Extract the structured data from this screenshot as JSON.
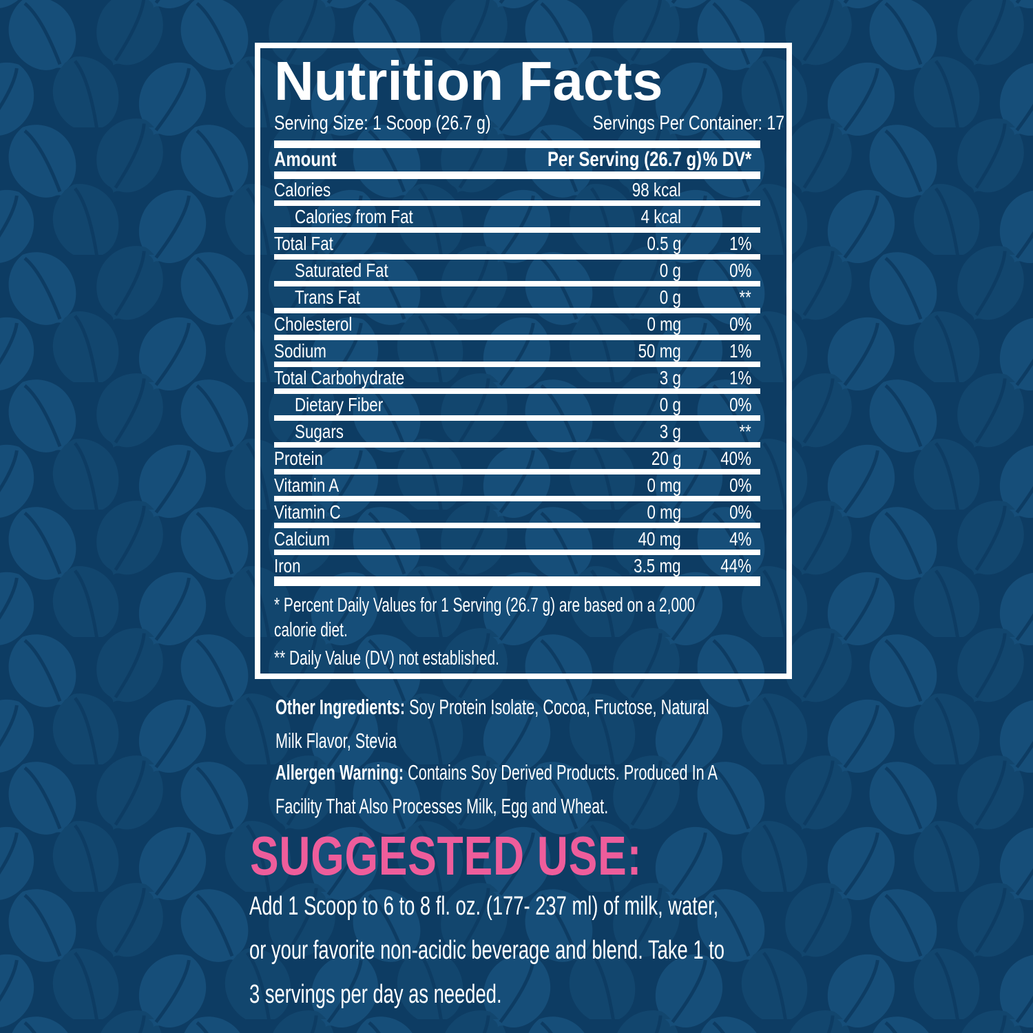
{
  "colors": {
    "background_navy": "#0d3c63",
    "leaf_blue_light": "#164e79",
    "leaf_blue_dark": "#12466e",
    "text_white": "#ffffff",
    "accent_pink": "#ee5d9b"
  },
  "panel": {
    "title": "Nutrition Facts",
    "serving_size": "Serving Size: 1 Scoop (26.7 g)",
    "servings_per_container": "Servings Per Container: 17",
    "header": {
      "amount": "Amount",
      "per_serving": "Per Serving (26.7 g)",
      "dv": "% DV*"
    },
    "rows": [
      {
        "name": "Calories",
        "amount": "98 kcal",
        "dv": "",
        "indent": false
      },
      {
        "name": "Calories from Fat",
        "amount": "4 kcal",
        "dv": "",
        "indent": true
      },
      {
        "name": "Total Fat",
        "amount": "0.5 g",
        "dv": "1%",
        "indent": false
      },
      {
        "name": "Saturated Fat",
        "amount": "0 g",
        "dv": "0%",
        "indent": true
      },
      {
        "name": "Trans Fat",
        "amount": "0 g",
        "dv": "**",
        "indent": true
      },
      {
        "name": "Cholesterol",
        "amount": "0 mg",
        "dv": "0%",
        "indent": false
      },
      {
        "name": "Sodium",
        "amount": "50 mg",
        "dv": "1%",
        "indent": false
      },
      {
        "name": "Total Carbohydrate",
        "amount": "3 g",
        "dv": "1%",
        "indent": false
      },
      {
        "name": "Dietary Fiber",
        "amount": "0 g",
        "dv": "0%",
        "indent": true
      },
      {
        "name": "Sugars",
        "amount": "3 g",
        "dv": "**",
        "indent": true
      },
      {
        "name": "Protein",
        "amount": "20 g",
        "dv": "40%",
        "indent": false
      },
      {
        "name": "Vitamin A",
        "amount": "0 mg",
        "dv": "0%",
        "indent": false
      },
      {
        "name": "Vitamin C",
        "amount": "0 mg",
        "dv": "0%",
        "indent": false
      },
      {
        "name": "Calcium",
        "amount": "40 mg",
        "dv": "4%",
        "indent": false
      },
      {
        "name": "Iron",
        "amount": "3.5 mg",
        "dv": "44%",
        "indent": false
      }
    ],
    "footnotes": [
      "* Percent Daily Values for 1 Serving (26.7 g) are based on a 2,000\ncalorie diet.",
      "** Daily Value (DV) not established."
    ]
  },
  "sections": {
    "other_ingredients_label": "Other Ingredients:",
    "other_ingredients_text": " Soy Protein Isolate, Cocoa, Fructose, Natural\nMilk Flavor, Stevia",
    "allergen_warning_label": "Allergen Warning:",
    "allergen_warning_text": " Contains Soy Derived Products. Produced In A\nFacility That Also Processes Milk, Egg and Wheat."
  },
  "suggested_use": {
    "heading": "SUGGESTED USE:",
    "body": "Add 1 Scoop to 6 to 8 fl. oz. (177- 237 ml) of milk, water,\nor your favorite non-acidic beverage and blend. Take 1 to\n3 servings per day as needed."
  }
}
